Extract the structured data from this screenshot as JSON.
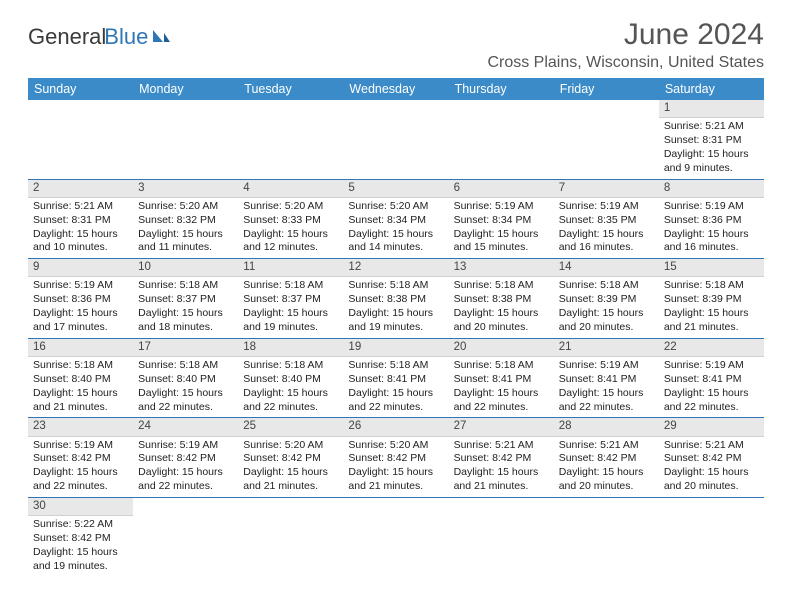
{
  "brand": {
    "part1": "General",
    "part2": "Blue"
  },
  "title": "June 2024",
  "location": "Cross Plains, Wisconsin, United States",
  "colors": {
    "header_bg": "#3b8bc8",
    "header_fg": "#ffffff",
    "daynum_bg": "#e8e8e8",
    "week_rule": "#2f76b7",
    "text": "#222222",
    "title_color": "#555555"
  },
  "day_names": [
    "Sunday",
    "Monday",
    "Tuesday",
    "Wednesday",
    "Thursday",
    "Friday",
    "Saturday"
  ],
  "weeks": [
    [
      null,
      null,
      null,
      null,
      null,
      null,
      {
        "n": "1",
        "sr": "Sunrise: 5:21 AM",
        "ss": "Sunset: 8:31 PM",
        "dl": "Daylight: 15 hours and 9 minutes."
      }
    ],
    [
      {
        "n": "2",
        "sr": "Sunrise: 5:21 AM",
        "ss": "Sunset: 8:31 PM",
        "dl": "Daylight: 15 hours and 10 minutes."
      },
      {
        "n": "3",
        "sr": "Sunrise: 5:20 AM",
        "ss": "Sunset: 8:32 PM",
        "dl": "Daylight: 15 hours and 11 minutes."
      },
      {
        "n": "4",
        "sr": "Sunrise: 5:20 AM",
        "ss": "Sunset: 8:33 PM",
        "dl": "Daylight: 15 hours and 12 minutes."
      },
      {
        "n": "5",
        "sr": "Sunrise: 5:20 AM",
        "ss": "Sunset: 8:34 PM",
        "dl": "Daylight: 15 hours and 14 minutes."
      },
      {
        "n": "6",
        "sr": "Sunrise: 5:19 AM",
        "ss": "Sunset: 8:34 PM",
        "dl": "Daylight: 15 hours and 15 minutes."
      },
      {
        "n": "7",
        "sr": "Sunrise: 5:19 AM",
        "ss": "Sunset: 8:35 PM",
        "dl": "Daylight: 15 hours and 16 minutes."
      },
      {
        "n": "8",
        "sr": "Sunrise: 5:19 AM",
        "ss": "Sunset: 8:36 PM",
        "dl": "Daylight: 15 hours and 16 minutes."
      }
    ],
    [
      {
        "n": "9",
        "sr": "Sunrise: 5:19 AM",
        "ss": "Sunset: 8:36 PM",
        "dl": "Daylight: 15 hours and 17 minutes."
      },
      {
        "n": "10",
        "sr": "Sunrise: 5:18 AM",
        "ss": "Sunset: 8:37 PM",
        "dl": "Daylight: 15 hours and 18 minutes."
      },
      {
        "n": "11",
        "sr": "Sunrise: 5:18 AM",
        "ss": "Sunset: 8:37 PM",
        "dl": "Daylight: 15 hours and 19 minutes."
      },
      {
        "n": "12",
        "sr": "Sunrise: 5:18 AM",
        "ss": "Sunset: 8:38 PM",
        "dl": "Daylight: 15 hours and 19 minutes."
      },
      {
        "n": "13",
        "sr": "Sunrise: 5:18 AM",
        "ss": "Sunset: 8:38 PM",
        "dl": "Daylight: 15 hours and 20 minutes."
      },
      {
        "n": "14",
        "sr": "Sunrise: 5:18 AM",
        "ss": "Sunset: 8:39 PM",
        "dl": "Daylight: 15 hours and 20 minutes."
      },
      {
        "n": "15",
        "sr": "Sunrise: 5:18 AM",
        "ss": "Sunset: 8:39 PM",
        "dl": "Daylight: 15 hours and 21 minutes."
      }
    ],
    [
      {
        "n": "16",
        "sr": "Sunrise: 5:18 AM",
        "ss": "Sunset: 8:40 PM",
        "dl": "Daylight: 15 hours and 21 minutes."
      },
      {
        "n": "17",
        "sr": "Sunrise: 5:18 AM",
        "ss": "Sunset: 8:40 PM",
        "dl": "Daylight: 15 hours and 22 minutes."
      },
      {
        "n": "18",
        "sr": "Sunrise: 5:18 AM",
        "ss": "Sunset: 8:40 PM",
        "dl": "Daylight: 15 hours and 22 minutes."
      },
      {
        "n": "19",
        "sr": "Sunrise: 5:18 AM",
        "ss": "Sunset: 8:41 PM",
        "dl": "Daylight: 15 hours and 22 minutes."
      },
      {
        "n": "20",
        "sr": "Sunrise: 5:18 AM",
        "ss": "Sunset: 8:41 PM",
        "dl": "Daylight: 15 hours and 22 minutes."
      },
      {
        "n": "21",
        "sr": "Sunrise: 5:19 AM",
        "ss": "Sunset: 8:41 PM",
        "dl": "Daylight: 15 hours and 22 minutes."
      },
      {
        "n": "22",
        "sr": "Sunrise: 5:19 AM",
        "ss": "Sunset: 8:41 PM",
        "dl": "Daylight: 15 hours and 22 minutes."
      }
    ],
    [
      {
        "n": "23",
        "sr": "Sunrise: 5:19 AM",
        "ss": "Sunset: 8:42 PM",
        "dl": "Daylight: 15 hours and 22 minutes."
      },
      {
        "n": "24",
        "sr": "Sunrise: 5:19 AM",
        "ss": "Sunset: 8:42 PM",
        "dl": "Daylight: 15 hours and 22 minutes."
      },
      {
        "n": "25",
        "sr": "Sunrise: 5:20 AM",
        "ss": "Sunset: 8:42 PM",
        "dl": "Daylight: 15 hours and 21 minutes."
      },
      {
        "n": "26",
        "sr": "Sunrise: 5:20 AM",
        "ss": "Sunset: 8:42 PM",
        "dl": "Daylight: 15 hours and 21 minutes."
      },
      {
        "n": "27",
        "sr": "Sunrise: 5:21 AM",
        "ss": "Sunset: 8:42 PM",
        "dl": "Daylight: 15 hours and 21 minutes."
      },
      {
        "n": "28",
        "sr": "Sunrise: 5:21 AM",
        "ss": "Sunset: 8:42 PM",
        "dl": "Daylight: 15 hours and 20 minutes."
      },
      {
        "n": "29",
        "sr": "Sunrise: 5:21 AM",
        "ss": "Sunset: 8:42 PM",
        "dl": "Daylight: 15 hours and 20 minutes."
      }
    ],
    [
      {
        "n": "30",
        "sr": "Sunrise: 5:22 AM",
        "ss": "Sunset: 8:42 PM",
        "dl": "Daylight: 15 hours and 19 minutes."
      },
      null,
      null,
      null,
      null,
      null,
      null
    ]
  ]
}
